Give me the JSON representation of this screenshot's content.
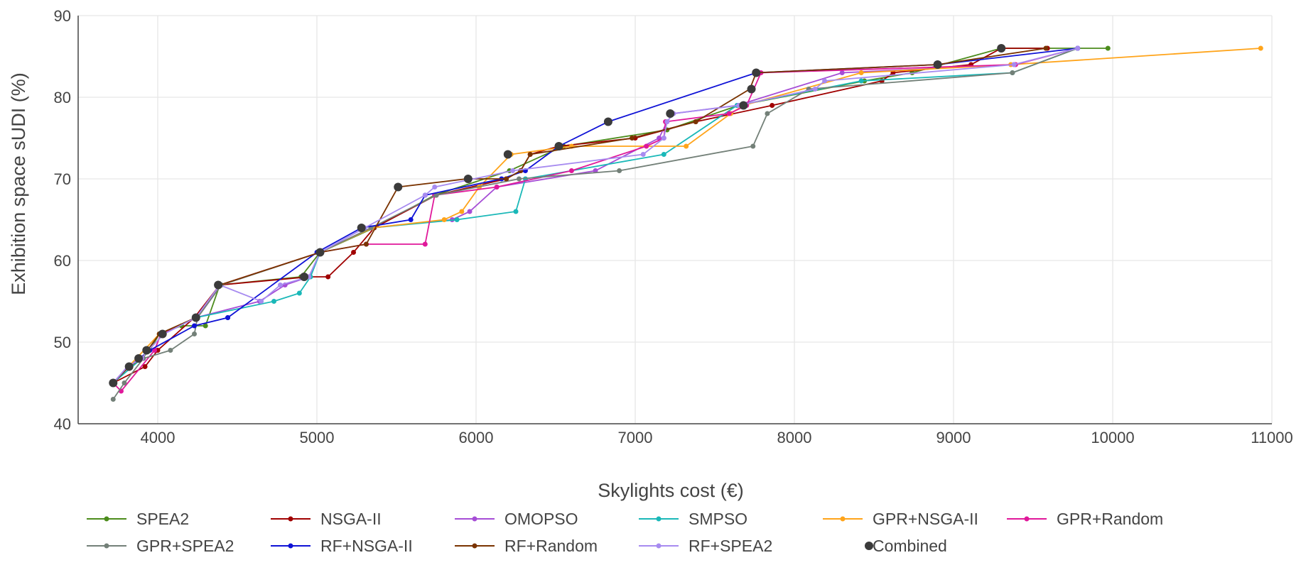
{
  "chart_data": {
    "type": "line",
    "title": "",
    "xlabel": "Skylights cost (€)",
    "ylabel": "Exhibition space sUDI (%)",
    "xlim": [
      3500,
      11000
    ],
    "ylim": [
      40,
      90
    ],
    "x_ticks": [
      4000,
      5000,
      6000,
      7000,
      8000,
      9000,
      10000,
      11000
    ],
    "y_ticks": [
      40,
      50,
      60,
      70,
      80,
      90
    ],
    "grid": true,
    "legend_position": "bottom",
    "series": [
      {
        "name": "SPEA2",
        "color": "#4c8c1c",
        "points": [
          [
            3720,
            45
          ],
          [
            3820,
            47
          ],
          [
            3900,
            48
          ],
          [
            3950,
            49
          ],
          [
            4010,
            51
          ],
          [
            4150,
            52
          ],
          [
            4300,
            52
          ],
          [
            4390,
            57
          ],
          [
            4900,
            58
          ],
          [
            5020,
            61
          ],
          [
            5360,
            64
          ],
          [
            5740,
            68
          ],
          [
            6210,
            71
          ],
          [
            6550,
            74
          ],
          [
            7200,
            76
          ],
          [
            7650,
            79
          ],
          [
            8440,
            82
          ],
          [
            8740,
            83
          ],
          [
            9300,
            86
          ],
          [
            9970,
            86
          ]
        ]
      },
      {
        "name": "NSGA-II",
        "color": "#a00000",
        "points": [
          [
            3720,
            45
          ],
          [
            3920,
            47
          ],
          [
            4000,
            49
          ],
          [
            4230,
            53
          ],
          [
            4390,
            57
          ],
          [
            4950,
            58
          ],
          [
            5070,
            58
          ],
          [
            5230,
            61
          ],
          [
            5360,
            64
          ],
          [
            5750,
            68
          ],
          [
            6190,
            70
          ],
          [
            6280,
            71
          ],
          [
            6340,
            73
          ],
          [
            6520,
            74
          ],
          [
            7000,
            75
          ],
          [
            7380,
            77
          ],
          [
            7860,
            79
          ],
          [
            8550,
            82
          ],
          [
            8620,
            83
          ],
          [
            9110,
            84
          ],
          [
            9300,
            86
          ],
          [
            9590,
            86
          ]
        ]
      },
      {
        "name": "OMOPSO",
        "color": "#a64dd6",
        "points": [
          [
            3720,
            45
          ],
          [
            3810,
            47
          ],
          [
            3900,
            48
          ],
          [
            4010,
            51
          ],
          [
            4240,
            53
          ],
          [
            4640,
            55
          ],
          [
            4800,
            57
          ],
          [
            4950,
            58
          ],
          [
            5020,
            61
          ],
          [
            5340,
            64
          ],
          [
            5850,
            65
          ],
          [
            5960,
            66
          ],
          [
            6130,
            69
          ],
          [
            6750,
            71
          ],
          [
            7150,
            75
          ],
          [
            7200,
            77
          ],
          [
            7240,
            78
          ],
          [
            7640,
            79
          ],
          [
            8300,
            83
          ],
          [
            9380,
            84
          ],
          [
            9780,
            86
          ]
        ]
      },
      {
        "name": "SMPSO",
        "color": "#1ab8b8",
        "points": [
          [
            3720,
            45
          ],
          [
            3900,
            48
          ],
          [
            4010,
            51
          ],
          [
            4240,
            53
          ],
          [
            4730,
            55
          ],
          [
            4890,
            56
          ],
          [
            4960,
            58
          ],
          [
            5020,
            61
          ],
          [
            5350,
            64
          ],
          [
            5880,
            65
          ],
          [
            6250,
            66
          ],
          [
            6310,
            70
          ],
          [
            7180,
            73
          ],
          [
            7640,
            79
          ],
          [
            8420,
            82
          ],
          [
            9370,
            83
          ],
          [
            9780,
            86
          ]
        ]
      },
      {
        "name": "GPR+NSGA-II",
        "color": "#ffa41a",
        "points": [
          [
            3720,
            45
          ],
          [
            4010,
            51
          ],
          [
            4240,
            53
          ],
          [
            4390,
            57
          ],
          [
            5020,
            61
          ],
          [
            5350,
            64
          ],
          [
            5800,
            65
          ],
          [
            5910,
            66
          ],
          [
            6020,
            69
          ],
          [
            6220,
            73
          ],
          [
            6600,
            74
          ],
          [
            7320,
            74
          ],
          [
            7600,
            78
          ],
          [
            7680,
            79
          ],
          [
            8420,
            83
          ],
          [
            9360,
            84
          ],
          [
            10930,
            86
          ]
        ]
      },
      {
        "name": "GPR+Random",
        "color": "#e0189a",
        "points": [
          [
            3720,
            45
          ],
          [
            3770,
            44
          ],
          [
            3980,
            49
          ],
          [
            4020,
            51
          ],
          [
            4240,
            53
          ],
          [
            4390,
            57
          ],
          [
            5020,
            61
          ],
          [
            5310,
            62
          ],
          [
            5680,
            62
          ],
          [
            5740,
            68
          ],
          [
            6130,
            69
          ],
          [
            6600,
            71
          ],
          [
            7070,
            74
          ],
          [
            7180,
            75
          ],
          [
            7190,
            77
          ],
          [
            7590,
            78
          ],
          [
            7700,
            79
          ],
          [
            7790,
            83
          ],
          [
            9390,
            84
          ],
          [
            9780,
            86
          ]
        ]
      },
      {
        "name": "GPR+SPEA2",
        "color": "#738078",
        "points": [
          [
            3720,
            43
          ],
          [
            3790,
            45
          ],
          [
            3910,
            48
          ],
          [
            4080,
            49
          ],
          [
            4230,
            51
          ],
          [
            4250,
            53
          ],
          [
            4400,
            57
          ],
          [
            5020,
            61
          ],
          [
            5340,
            64
          ],
          [
            5750,
            68
          ],
          [
            6270,
            70
          ],
          [
            6900,
            71
          ],
          [
            7740,
            74
          ],
          [
            7830,
            78
          ],
          [
            8090,
            81
          ],
          [
            9370,
            83
          ],
          [
            9780,
            86
          ]
        ]
      },
      {
        "name": "RF+NSGA-II",
        "color": "#0f12d6",
        "points": [
          [
            3720,
            45
          ],
          [
            3820,
            47
          ],
          [
            3950,
            49
          ],
          [
            4230,
            52
          ],
          [
            4440,
            53
          ],
          [
            4440,
            53
          ],
          [
            5000,
            61
          ],
          [
            5280,
            64
          ],
          [
            5590,
            65
          ],
          [
            5680,
            68
          ],
          [
            6160,
            70
          ],
          [
            6310,
            71
          ],
          [
            6520,
            74
          ],
          [
            6830,
            77
          ],
          [
            7760,
            83
          ],
          [
            8900,
            84
          ],
          [
            9780,
            86
          ]
        ]
      },
      {
        "name": "RF+Random",
        "color": "#7a3300",
        "points": [
          [
            3720,
            45
          ],
          [
            3820,
            47
          ],
          [
            3900,
            48
          ],
          [
            4010,
            51
          ],
          [
            4240,
            53
          ],
          [
            4390,
            57
          ],
          [
            5020,
            61
          ],
          [
            5310,
            62
          ],
          [
            5510,
            69
          ],
          [
            5940,
            70
          ],
          [
            6190,
            70
          ],
          [
            6280,
            71
          ],
          [
            6340,
            73
          ],
          [
            6980,
            75
          ],
          [
            7380,
            77
          ],
          [
            7720,
            81
          ],
          [
            7760,
            83
          ],
          [
            8900,
            84
          ],
          [
            9580,
            86
          ]
        ]
      },
      {
        "name": "RF+SPEA2",
        "color": "#a78bf0",
        "points": [
          [
            3720,
            45
          ],
          [
            3810,
            47
          ],
          [
            3900,
            48
          ],
          [
            3940,
            49
          ],
          [
            4040,
            51
          ],
          [
            4240,
            53
          ],
          [
            4390,
            57
          ],
          [
            4650,
            55
          ],
          [
            4770,
            57
          ],
          [
            4950,
            58
          ],
          [
            5020,
            61
          ],
          [
            5300,
            64
          ],
          [
            5680,
            68
          ],
          [
            5740,
            69
          ],
          [
            6230,
            71
          ],
          [
            7050,
            73
          ],
          [
            7180,
            75
          ],
          [
            7200,
            77
          ],
          [
            7240,
            78
          ],
          [
            7650,
            79
          ],
          [
            8130,
            81
          ],
          [
            8190,
            82
          ],
          [
            9380,
            84
          ],
          [
            9780,
            86
          ]
        ]
      }
    ],
    "combined": {
      "name": "Combined",
      "color": "#3b3b3b",
      "points": [
        [
          3720,
          45
        ],
        [
          3820,
          47
        ],
        [
          3880,
          48
        ],
        [
          3930,
          49
        ],
        [
          4030,
          51
        ],
        [
          4240,
          53
        ],
        [
          4380,
          57
        ],
        [
          4920,
          58
        ],
        [
          5020,
          61
        ],
        [
          5280,
          64
        ],
        [
          5510,
          69
        ],
        [
          5950,
          70
        ],
        [
          6200,
          73
        ],
        [
          6520,
          74
        ],
        [
          6830,
          77
        ],
        [
          7220,
          78
        ],
        [
          7680,
          79
        ],
        [
          7730,
          81
        ],
        [
          7760,
          83
        ],
        [
          8900,
          84
        ],
        [
          9300,
          86
        ]
      ]
    }
  }
}
